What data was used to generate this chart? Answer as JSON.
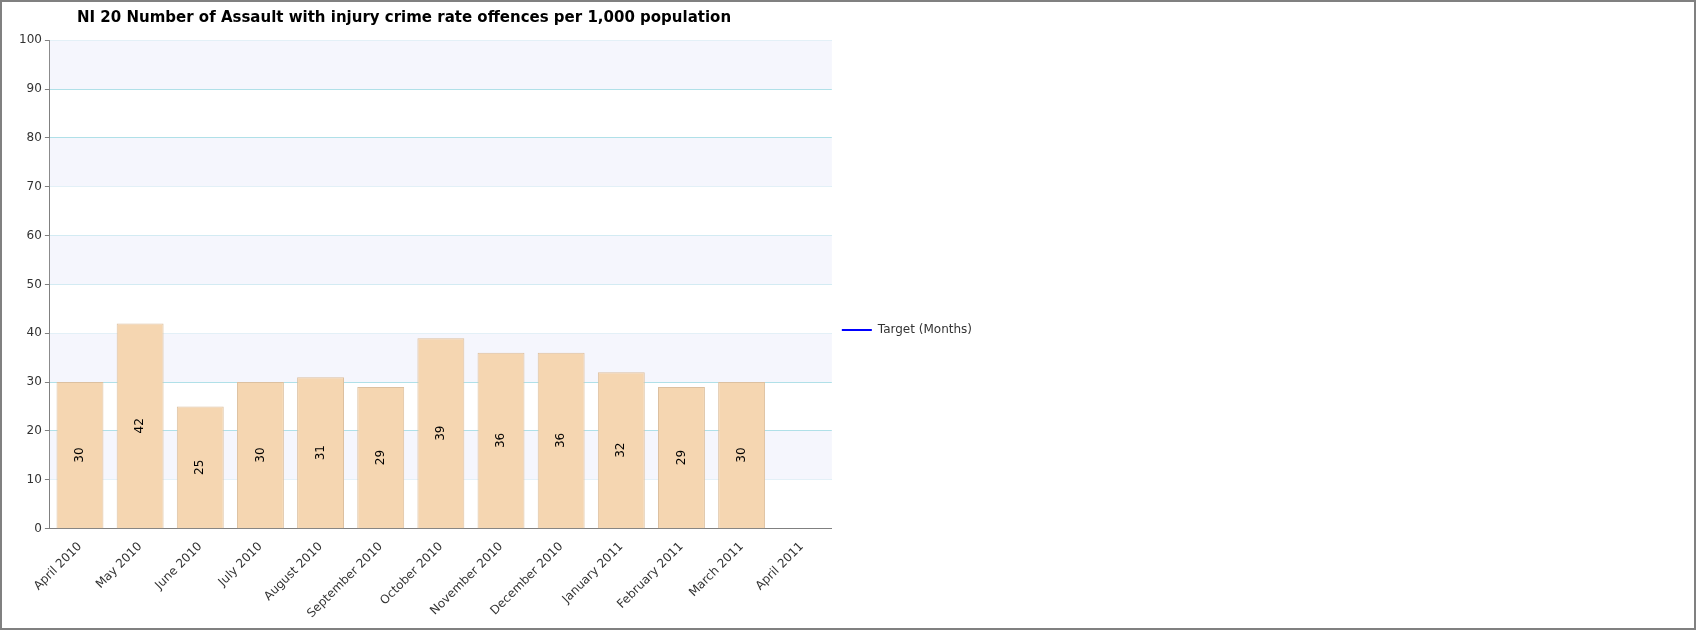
{
  "chart_data": {
    "type": "bar",
    "title": "NI 20 Number of Assault with injury crime rate offences per 1,000 population",
    "categories": [
      "April 2010",
      "May 2010",
      "June 2010",
      "July 2010",
      "August 2010",
      "September 2010",
      "October 2010",
      "November 2010",
      "December 2010",
      "January 2011",
      "February 2011",
      "March 2011",
      "April 2011"
    ],
    "series": [
      {
        "color": "#f5d6b1",
        "values": [
          30,
          42,
          25,
          30,
          31,
          29,
          39,
          36,
          36,
          32,
          29,
          30,
          null
        ]
      },
      {
        "type": "line",
        "name": "Target (Months)",
        "color": "#0000ff",
        "values": [
          null,
          null,
          null,
          null,
          null,
          null,
          null,
          null,
          null,
          null,
          null,
          null,
          null
        ]
      }
    ],
    "ylim": [
      0,
      100
    ],
    "yticks": [
      0,
      10,
      20,
      30,
      40,
      50,
      60,
      70,
      80,
      90,
      100
    ],
    "grid": "y",
    "legend": "right",
    "data_labels": true
  }
}
